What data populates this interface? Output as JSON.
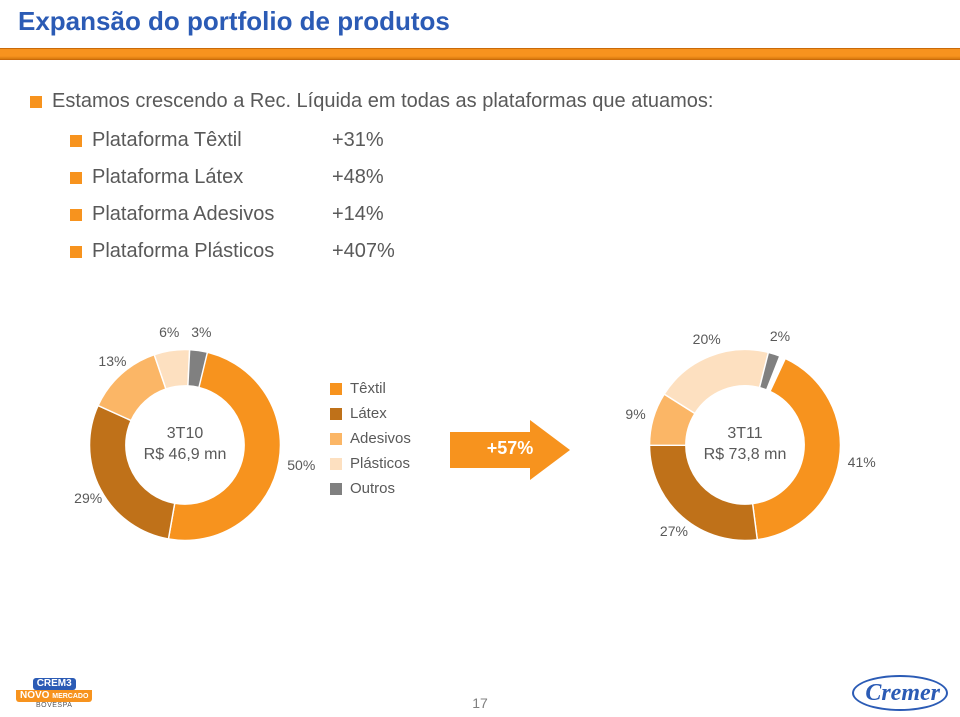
{
  "title": {
    "text": "Expansão do portfolio de produtos",
    "color": "#2b5bb5"
  },
  "lead": "Estamos crescendo a Rec. Líquida em todas as plataformas que atuamos:",
  "platforms": [
    {
      "label": "Plataforma Têxtil",
      "value": "+31%"
    },
    {
      "label": "Plataforma Látex",
      "value": "+48%"
    },
    {
      "label": "Plataforma Adesivos",
      "value": "+14%"
    },
    {
      "label": "Plataforma Plásticos",
      "value": "+407%"
    }
  ],
  "colors": {
    "textil": "#f7931e",
    "latex": "#bf7119",
    "adesivos": "#fbb666",
    "plasticos": "#fde0c0",
    "outros": "#808080",
    "arrow": "#f7931e",
    "grey_text": "#595959"
  },
  "donut_left": {
    "center_line1": "3T10",
    "center_line2": "R$ 46,9 mn",
    "segments": [
      {
        "key": "textil",
        "pct": 50,
        "label": "50%"
      },
      {
        "key": "latex",
        "pct": 29,
        "label": "29%"
      },
      {
        "key": "adesivos",
        "pct": 13,
        "label": "13%"
      },
      {
        "key": "plasticos",
        "pct": 6,
        "label": "6%"
      },
      {
        "key": "outros",
        "pct": 3,
        "label": "3%"
      }
    ],
    "inner_r": 62,
    "outer_r": 100,
    "start_angle_deg": 10
  },
  "donut_right": {
    "center_line1": "3T11",
    "center_line2": "R$ 73,8 mn",
    "segments": [
      {
        "key": "textil",
        "pct": 41,
        "label": "41%"
      },
      {
        "key": "latex",
        "pct": 27,
        "label": "27%"
      },
      {
        "key": "adesivos",
        "pct": 9,
        "label": "9%"
      },
      {
        "key": "plasticos",
        "pct": 20,
        "label": "20%"
      },
      {
        "key": "outros",
        "pct": 2,
        "label": "2%"
      }
    ],
    "inner_r": 62,
    "outer_r": 100,
    "start_angle_deg": 25
  },
  "legend": [
    {
      "key": "textil",
      "label": "Têxtil"
    },
    {
      "key": "latex",
      "label": "Látex"
    },
    {
      "key": "adesivos",
      "label": "Adesivos"
    },
    {
      "key": "plasticos",
      "label": "Plásticos"
    },
    {
      "key": "outros",
      "label": "Outros"
    }
  ],
  "arrow_label": "+57%",
  "page_num": "17",
  "logo_left": {
    "l1": "CREM3",
    "l2": "NOVO",
    "l3": "MERCADO",
    "l4": "BOVESPA"
  },
  "logo_right": "Cremer"
}
